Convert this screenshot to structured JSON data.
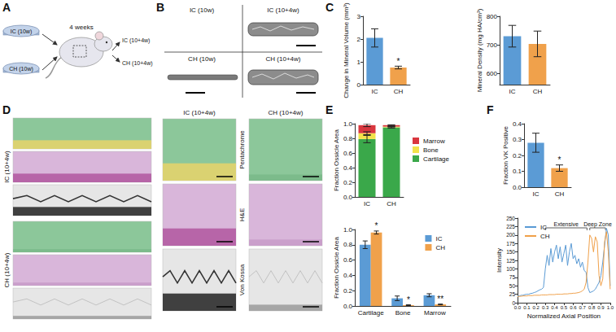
{
  "figure": {
    "panel_labels": [
      "A",
      "B",
      "C",
      "D",
      "E",
      "F"
    ],
    "schematic": {
      "inputs": [
        "IC (10w)",
        "CH (10w)"
      ],
      "duration": "4 weeks",
      "outputs": [
        "IC (10+4w)",
        "CH (10+4w)"
      ]
    },
    "micro_ct": {
      "labels": [
        "IC (10w)",
        "IC (10+4w)",
        "CH (10w)",
        "CH (10+4w)"
      ]
    },
    "histology": {
      "groups": [
        "IC (10+4w)",
        "CH (10+4w)"
      ],
      "stains": [
        "Pentachrome",
        "H&E",
        "Von Kossa"
      ]
    }
  },
  "chart_data": [
    {
      "type": "bar",
      "ylabel": "Change in Mineral Volume (mm³)",
      "categories": [
        "IC",
        "CH"
      ],
      "values": [
        2.05,
        0.75
      ],
      "errors": [
        0.4,
        0.06
      ],
      "significance": [
        null,
        "*"
      ],
      "colors": [
        "#5b9bd5",
        "#f0a14b"
      ],
      "ylim": [
        0,
        3
      ],
      "yticks": [
        0,
        1,
        2,
        3
      ],
      "grid": false
    },
    {
      "type": "bar",
      "ylabel": "Mineral Density (mg HA/cm³)",
      "categories": [
        "IC",
        "CH"
      ],
      "values": [
        730,
        703
      ],
      "errors": [
        38,
        45
      ],
      "colors": [
        "#5b9bd5",
        "#f0a14b"
      ],
      "ylim": [
        560,
        800
      ],
      "yticks": [
        600,
        700,
        800
      ],
      "grid": false
    },
    {
      "type": "bar",
      "stacked": true,
      "ylabel": "Fraction Ossicle Area",
      "categories": [
        "IC",
        "CH"
      ],
      "series": [
        {
          "name": "Cartilage",
          "color": "#3aa84a",
          "values": [
            0.79,
            0.95
          ],
          "errors": [
            0.05,
            0.01
          ]
        },
        {
          "name": "Bone",
          "color": "#f2e24a",
          "values": [
            0.08,
            0.01
          ],
          "errors": [
            0.02,
            0.005
          ]
        },
        {
          "name": "Marrow",
          "color": "#d9363e",
          "values": [
            0.11,
            0.02
          ],
          "errors": [
            0.02,
            0.005
          ]
        }
      ],
      "ylim": [
        0,
        1
      ],
      "yticks": [
        {
          "value": 0,
          "label": "0.0"
        },
        {
          "value": 0.2,
          "label": "0.2"
        },
        {
          "value": 0.4,
          "label": "0.4"
        },
        {
          "value": 0.6,
          "label": "0.6"
        },
        {
          "value": 0.8,
          "label": "0.8"
        },
        {
          "value": 1,
          "label": "1.0"
        }
      ],
      "legend": "right",
      "grid": false
    },
    {
      "type": "bar",
      "ylabel": "Fraction Ossicle Area",
      "categories": [
        "Cartilage",
        "Bone",
        "Marrow"
      ],
      "series": [
        {
          "name": "IC",
          "color": "#5b9bd5",
          "values": [
            0.8,
            0.1,
            0.14
          ],
          "errors": [
            0.05,
            0.03,
            0.02
          ]
        },
        {
          "name": "CH",
          "color": "#f0a14b",
          "values": [
            0.96,
            0.01,
            0.02
          ],
          "errors": [
            0.02,
            0.005,
            0.005
          ],
          "significance": [
            "*",
            "*",
            "**"
          ]
        }
      ],
      "ylim": [
        0,
        1
      ],
      "yticks": [
        {
          "value": 0,
          "label": "0.0"
        },
        {
          "value": 0.2,
          "label": "0.2"
        },
        {
          "value": 0.4,
          "label": "0.4"
        },
        {
          "value": 0.6,
          "label": "0.6"
        },
        {
          "value": 0.8,
          "label": "0.8"
        },
        {
          "value": 1,
          "label": "1.0"
        }
      ],
      "legend": "top-right",
      "grid": false
    },
    {
      "type": "bar",
      "ylabel": "Fraction VK Positive",
      "categories": [
        "IC",
        "CH"
      ],
      "values": [
        0.28,
        0.12
      ],
      "errors": [
        0.06,
        0.02
      ],
      "significance": [
        null,
        "*"
      ],
      "colors": [
        "#5b9bd5",
        "#f0a14b"
      ],
      "ylim": [
        0,
        0.4
      ],
      "yticks": [
        {
          "value": 0,
          "label": "0.0"
        },
        {
          "value": 0.1,
          "label": "0.1"
        },
        {
          "value": 0.2,
          "label": "0.2"
        },
        {
          "value": 0.3,
          "label": "0.3"
        },
        {
          "value": 0.4,
          "label": "0.4"
        }
      ],
      "grid": false
    },
    {
      "type": "line",
      "xlabel": "Normalized Axial Position",
      "ylabel": "Intensity",
      "x": [
        0,
        0.02,
        0.04,
        0.06,
        0.08,
        0.1,
        0.12,
        0.14,
        0.16,
        0.18,
        0.2,
        0.22,
        0.24,
        0.26,
        0.28,
        0.3,
        0.32,
        0.34,
        0.36,
        0.38,
        0.4,
        0.42,
        0.44,
        0.46,
        0.48,
        0.5,
        0.52,
        0.54,
        0.56,
        0.58,
        0.6,
        0.62,
        0.64,
        0.66,
        0.68,
        0.7,
        0.72,
        0.74,
        0.76,
        0.78,
        0.8,
        0.82,
        0.84,
        0.86,
        0.88,
        0.9,
        0.92,
        0.94,
        0.96,
        0.98,
        1
      ],
      "series": [
        {
          "name": "IC",
          "color": "#5b9bd5",
          "values": [
            20,
            20,
            22,
            22,
            24,
            25,
            25,
            27,
            28,
            30,
            32,
            35,
            38,
            40,
            45,
            100,
            140,
            110,
            160,
            120,
            150,
            170,
            130,
            165,
            120,
            145,
            170,
            110,
            150,
            175,
            130,
            140,
            115,
            130,
            105,
            120,
            95,
            90,
            45,
            30,
            32,
            35,
            40,
            50,
            60,
            80,
            120,
            170,
            220,
            200,
            50
          ]
        },
        {
          "name": "CH",
          "color": "#f0a14b",
          "values": [
            18,
            19,
            19,
            20,
            20,
            20,
            21,
            21,
            21,
            22,
            22,
            22,
            22,
            23,
            23,
            23,
            23,
            24,
            24,
            24,
            24,
            25,
            25,
            25,
            25,
            26,
            26,
            26,
            27,
            27,
            28,
            28,
            29,
            30,
            32,
            35,
            40,
            60,
            120,
            200,
            190,
            150,
            195,
            180,
            80,
            50,
            70,
            180,
            210,
            150,
            40
          ]
        }
      ],
      "annotations": [
        {
          "text": "Extensive",
          "x": [
            0.3,
            0.75
          ]
        },
        {
          "text": "Deep Zone",
          "x": [
            0.78,
            0.95
          ]
        }
      ],
      "xlim": [
        0,
        1
      ],
      "xticks": [
        {
          "value": 0,
          "label": "0.0"
        },
        {
          "value": 0.1,
          "label": "0.1"
        },
        {
          "value": 0.2,
          "label": "0.2"
        },
        {
          "value": 0.3,
          "label": "0.3"
        },
        {
          "value": 0.4,
          "label": "0.4"
        },
        {
          "value": 0.5,
          "label": "0.5"
        },
        {
          "value": 0.6,
          "label": "0.6"
        },
        {
          "value": 0.7,
          "label": "0.7"
        },
        {
          "value": 0.8,
          "label": "0.8"
        },
        {
          "value": 0.9,
          "label": "0.9"
        },
        {
          "value": 1,
          "label": "1.0"
        }
      ],
      "ylim": [
        0,
        250
      ],
      "yticks": [
        0,
        25,
        50,
        75,
        100,
        125,
        150,
        175,
        200,
        225,
        250
      ],
      "legend": "top-left",
      "grid": false
    }
  ]
}
